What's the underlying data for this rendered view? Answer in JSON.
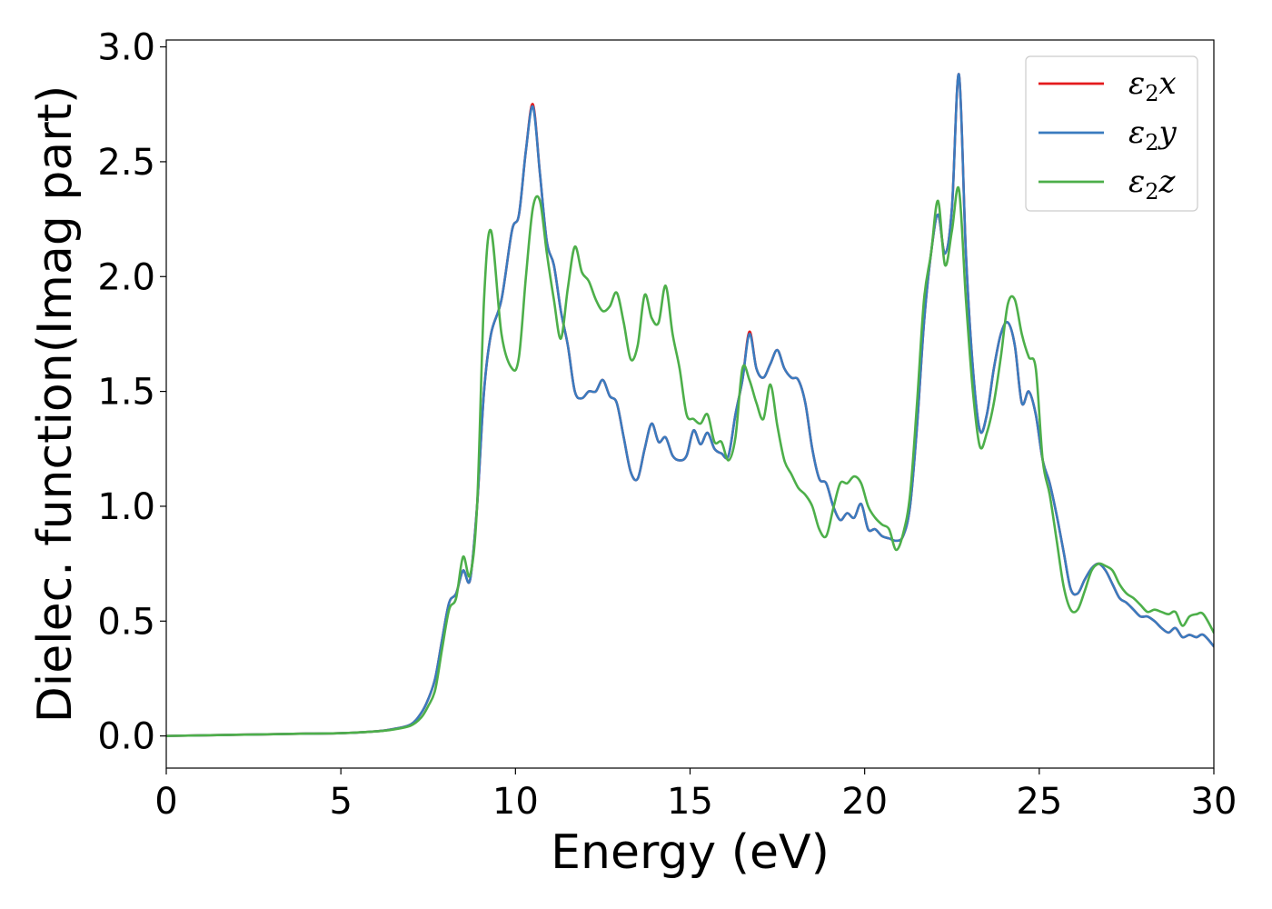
{
  "chart_data": {
    "type": "line",
    "xlabel": "Energy (eV)",
    "ylabel": "Dielec. function(Imag part)",
    "xlim": [
      0,
      30
    ],
    "ylim": [
      -0.14,
      3.03
    ],
    "xticks": [
      0,
      5,
      10,
      15,
      20,
      25,
      30
    ],
    "xtick_labels": [
      "0",
      "5",
      "10",
      "15",
      "20",
      "25",
      "30"
    ],
    "yticks": [
      0.0,
      0.5,
      1.0,
      1.5,
      2.0,
      2.5,
      3.0
    ],
    "ytick_labels": [
      "0.0",
      "0.5",
      "1.0",
      "1.5",
      "2.0",
      "2.5",
      "3.0"
    ],
    "grid": false,
    "legend_position": "top-right",
    "series": [
      {
        "name": "ε₂x",
        "legend_base": "ε",
        "legend_sub": "2",
        "legend_suffix": "x",
        "color": "#e41a1c",
        "x": [
          0,
          2,
          4,
          5,
          6,
          6.5,
          7,
          7.3,
          7.5,
          7.7,
          7.9,
          8.1,
          8.3,
          8.5,
          8.7,
          8.9,
          9.1,
          9.3,
          9.6,
          9.9,
          10.1,
          10.3,
          10.5,
          10.7,
          10.9,
          11.1,
          11.3,
          11.5,
          11.7,
          11.9,
          12.1,
          12.3,
          12.5,
          12.7,
          12.9,
          13.1,
          13.3,
          13.5,
          13.7,
          13.9,
          14.1,
          14.3,
          14.5,
          14.7,
          14.9,
          15.1,
          15.3,
          15.5,
          15.7,
          15.9,
          16.1,
          16.3,
          16.5,
          16.7,
          16.9,
          17.1,
          17.3,
          17.5,
          17.7,
          17.9,
          18.1,
          18.3,
          18.5,
          18.7,
          18.9,
          19.1,
          19.3,
          19.5,
          19.7,
          19.9,
          20.1,
          20.3,
          20.5,
          20.7,
          20.9,
          21.1,
          21.3,
          21.5,
          21.7,
          21.9,
          22.1,
          22.3,
          22.5,
          22.7,
          22.9,
          23.1,
          23.3,
          23.5,
          23.7,
          23.9,
          24.1,
          24.3,
          24.5,
          24.7,
          24.9,
          25.1,
          25.3,
          25.5,
          25.7,
          25.9,
          26.1,
          26.3,
          26.5,
          26.7,
          26.9,
          27.1,
          27.3,
          27.5,
          27.7,
          27.9,
          28.1,
          28.3,
          28.5,
          28.7,
          28.9,
          29.1,
          29.3,
          29.5,
          29.7,
          30
        ],
        "values": [
          0.0,
          0.005,
          0.01,
          0.012,
          0.02,
          0.03,
          0.05,
          0.1,
          0.16,
          0.25,
          0.42,
          0.58,
          0.62,
          0.72,
          0.68,
          1.0,
          1.5,
          1.75,
          1.9,
          2.2,
          2.27,
          2.55,
          2.75,
          2.45,
          2.15,
          2.05,
          1.85,
          1.7,
          1.5,
          1.47,
          1.5,
          1.5,
          1.55,
          1.48,
          1.45,
          1.3,
          1.15,
          1.12,
          1.25,
          1.36,
          1.28,
          1.3,
          1.22,
          1.2,
          1.22,
          1.33,
          1.27,
          1.32,
          1.25,
          1.23,
          1.22,
          1.4,
          1.55,
          1.76,
          1.6,
          1.56,
          1.62,
          1.68,
          1.6,
          1.56,
          1.55,
          1.45,
          1.25,
          1.12,
          1.1,
          1.0,
          0.94,
          0.97,
          0.95,
          1.01,
          0.9,
          0.9,
          0.87,
          0.86,
          0.85,
          0.87,
          1.0,
          1.35,
          1.8,
          2.1,
          2.27,
          2.1,
          2.3,
          2.88,
          2.1,
          1.6,
          1.33,
          1.4,
          1.6,
          1.75,
          1.8,
          1.7,
          1.45,
          1.5,
          1.4,
          1.2,
          1.1,
          0.96,
          0.8,
          0.64,
          0.62,
          0.68,
          0.73,
          0.75,
          0.72,
          0.66,
          0.6,
          0.58,
          0.55,
          0.52,
          0.52,
          0.5,
          0.47,
          0.45,
          0.47,
          0.43,
          0.44,
          0.43,
          0.44,
          0.39
        ]
      },
      {
        "name": "ε₂y",
        "legend_base": "ε",
        "legend_sub": "2",
        "legend_suffix": "y",
        "color": "#3a7bbf",
        "x": [
          0,
          2,
          4,
          5,
          6,
          6.5,
          7,
          7.3,
          7.5,
          7.7,
          7.9,
          8.1,
          8.3,
          8.5,
          8.7,
          8.9,
          9.1,
          9.3,
          9.6,
          9.9,
          10.1,
          10.3,
          10.5,
          10.7,
          10.9,
          11.1,
          11.3,
          11.5,
          11.7,
          11.9,
          12.1,
          12.3,
          12.5,
          12.7,
          12.9,
          13.1,
          13.3,
          13.5,
          13.7,
          13.9,
          14.1,
          14.3,
          14.5,
          14.7,
          14.9,
          15.1,
          15.3,
          15.5,
          15.7,
          15.9,
          16.1,
          16.3,
          16.5,
          16.7,
          16.9,
          17.1,
          17.3,
          17.5,
          17.7,
          17.9,
          18.1,
          18.3,
          18.5,
          18.7,
          18.9,
          19.1,
          19.3,
          19.5,
          19.7,
          19.9,
          20.1,
          20.3,
          20.5,
          20.7,
          20.9,
          21.1,
          21.3,
          21.5,
          21.7,
          21.9,
          22.1,
          22.3,
          22.5,
          22.7,
          22.9,
          23.1,
          23.3,
          23.5,
          23.7,
          23.9,
          24.1,
          24.3,
          24.5,
          24.7,
          24.9,
          25.1,
          25.3,
          25.5,
          25.7,
          25.9,
          26.1,
          26.3,
          26.5,
          26.7,
          26.9,
          27.1,
          27.3,
          27.5,
          27.7,
          27.9,
          28.1,
          28.3,
          28.5,
          28.7,
          28.9,
          29.1,
          29.3,
          29.5,
          29.7,
          30
        ],
        "values": [
          0.0,
          0.005,
          0.01,
          0.012,
          0.02,
          0.03,
          0.05,
          0.1,
          0.16,
          0.25,
          0.42,
          0.58,
          0.62,
          0.72,
          0.68,
          1.0,
          1.5,
          1.75,
          1.9,
          2.2,
          2.27,
          2.55,
          2.74,
          2.45,
          2.15,
          2.05,
          1.85,
          1.7,
          1.5,
          1.47,
          1.5,
          1.5,
          1.55,
          1.48,
          1.45,
          1.3,
          1.15,
          1.12,
          1.25,
          1.36,
          1.28,
          1.3,
          1.22,
          1.2,
          1.22,
          1.33,
          1.27,
          1.32,
          1.25,
          1.23,
          1.22,
          1.4,
          1.55,
          1.75,
          1.6,
          1.56,
          1.62,
          1.68,
          1.6,
          1.56,
          1.55,
          1.45,
          1.25,
          1.12,
          1.1,
          1.0,
          0.94,
          0.97,
          0.95,
          1.01,
          0.9,
          0.9,
          0.87,
          0.86,
          0.85,
          0.87,
          1.0,
          1.35,
          1.8,
          2.1,
          2.27,
          2.1,
          2.3,
          2.88,
          2.1,
          1.6,
          1.33,
          1.4,
          1.6,
          1.75,
          1.8,
          1.7,
          1.45,
          1.5,
          1.4,
          1.2,
          1.1,
          0.96,
          0.8,
          0.64,
          0.62,
          0.68,
          0.73,
          0.75,
          0.72,
          0.66,
          0.6,
          0.58,
          0.55,
          0.52,
          0.52,
          0.5,
          0.47,
          0.45,
          0.47,
          0.43,
          0.44,
          0.43,
          0.44,
          0.39
        ]
      },
      {
        "name": "ε₂z",
        "legend_base": "ε",
        "legend_sub": "2",
        "legend_suffix": "z",
        "color": "#4daf4a",
        "x": [
          0,
          2,
          4,
          5,
          6,
          6.5,
          7,
          7.3,
          7.5,
          7.7,
          7.9,
          8.1,
          8.3,
          8.5,
          8.7,
          8.9,
          9.1,
          9.3,
          9.6,
          9.9,
          10.1,
          10.3,
          10.5,
          10.7,
          10.9,
          11.1,
          11.3,
          11.5,
          11.7,
          11.9,
          12.1,
          12.3,
          12.5,
          12.7,
          12.9,
          13.1,
          13.3,
          13.5,
          13.7,
          13.9,
          14.1,
          14.3,
          14.5,
          14.7,
          14.9,
          15.1,
          15.3,
          15.5,
          15.7,
          15.9,
          16.1,
          16.3,
          16.5,
          16.7,
          16.9,
          17.1,
          17.3,
          17.5,
          17.7,
          17.9,
          18.1,
          18.3,
          18.5,
          18.7,
          18.9,
          19.1,
          19.3,
          19.5,
          19.7,
          19.9,
          20.1,
          20.3,
          20.5,
          20.7,
          20.9,
          21.1,
          21.3,
          21.5,
          21.7,
          21.9,
          22.1,
          22.3,
          22.5,
          22.7,
          22.9,
          23.1,
          23.3,
          23.5,
          23.7,
          23.9,
          24.1,
          24.3,
          24.5,
          24.7,
          24.9,
          25.1,
          25.3,
          25.5,
          25.7,
          25.9,
          26.1,
          26.3,
          26.5,
          26.7,
          26.9,
          27.1,
          27.3,
          27.5,
          27.7,
          27.9,
          28.1,
          28.3,
          28.5,
          28.7,
          28.9,
          29.1,
          29.3,
          29.5,
          29.7,
          30
        ],
        "values": [
          0.0,
          0.005,
          0.01,
          0.012,
          0.02,
          0.028,
          0.045,
          0.08,
          0.13,
          0.2,
          0.38,
          0.55,
          0.6,
          0.78,
          0.7,
          1.0,
          1.9,
          2.2,
          1.75,
          1.6,
          1.65,
          2.0,
          2.3,
          2.33,
          2.1,
          1.9,
          1.73,
          1.95,
          2.13,
          2.02,
          1.98,
          1.9,
          1.85,
          1.87,
          1.93,
          1.8,
          1.64,
          1.7,
          1.92,
          1.82,
          1.8,
          1.96,
          1.75,
          1.6,
          1.4,
          1.38,
          1.36,
          1.4,
          1.28,
          1.28,
          1.2,
          1.3,
          1.6,
          1.55,
          1.45,
          1.38,
          1.53,
          1.35,
          1.2,
          1.14,
          1.08,
          1.05,
          1.0,
          0.9,
          0.87,
          0.99,
          1.1,
          1.1,
          1.13,
          1.1,
          1.0,
          0.95,
          0.92,
          0.9,
          0.81,
          0.88,
          1.05,
          1.45,
          1.9,
          2.1,
          2.33,
          2.05,
          2.2,
          2.38,
          1.9,
          1.5,
          1.26,
          1.32,
          1.45,
          1.65,
          1.88,
          1.9,
          1.75,
          1.65,
          1.6,
          1.2,
          1.05,
          0.85,
          0.65,
          0.55,
          0.55,
          0.63,
          0.72,
          0.75,
          0.74,
          0.72,
          0.66,
          0.62,
          0.6,
          0.57,
          0.54,
          0.55,
          0.54,
          0.53,
          0.54,
          0.48,
          0.52,
          0.53,
          0.53,
          0.45
        ]
      }
    ]
  }
}
